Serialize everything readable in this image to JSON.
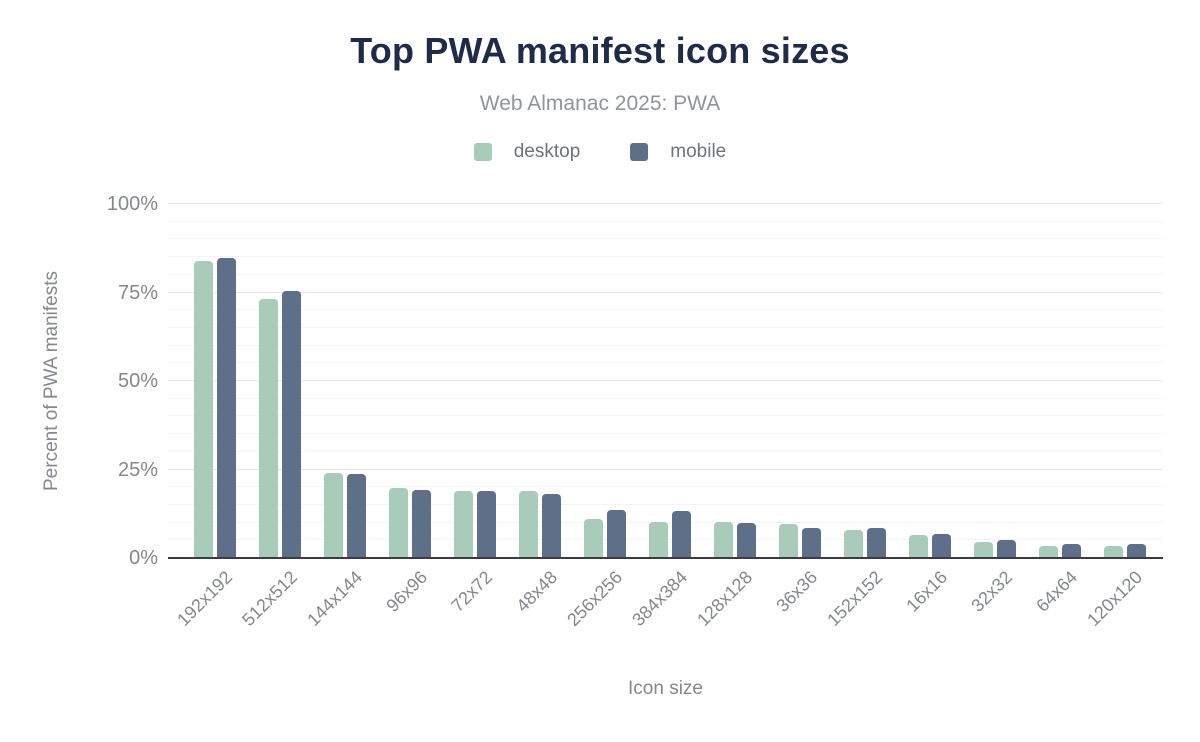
{
  "title": "Top PWA manifest icon sizes",
  "subtitle": "Web Almanac 2025: PWA",
  "legend": {
    "items": [
      {
        "label": "desktop",
        "color": "#a9cbb9"
      },
      {
        "label": "mobile",
        "color": "#5e7089"
      }
    ]
  },
  "colors": {
    "title": "#1e2b49",
    "subtitle_text": "#8f949c",
    "axis_text": "#84888e",
    "axis_line": "#3b3b41",
    "gridline_major": "#e6e7ea",
    "gridline_minor": "#f4f4f6",
    "desktop_series": "#a9cbb9",
    "mobile_series": "#5e7089"
  },
  "chart_data": {
    "type": "bar",
    "title": "Top PWA manifest icon sizes",
    "subtitle": "Web Almanac 2025: PWA",
    "xlabel": "Icon size",
    "ylabel": "Percent of PWA manifests",
    "ylim": [
      0,
      100
    ],
    "yticks": [
      0,
      25,
      50,
      75,
      100
    ],
    "ytick_labels": [
      "0%",
      "25%",
      "50%",
      "75%",
      "100%"
    ],
    "minor_gridline_step": 5,
    "major_gridline_step": 25,
    "grid": true,
    "legend_position": "top",
    "x_tick_rotation": -45,
    "categories": [
      "192x192",
      "512x512",
      "144x144",
      "96x96",
      "72x72",
      "48x48",
      "256x256",
      "384x384",
      "128x128",
      "36x36",
      "152x152",
      "16x16",
      "32x32",
      "64x64",
      "120x120"
    ],
    "series": [
      {
        "name": "desktop",
        "color": "#a9cbb9",
        "values": [
          84.0,
          73.3,
          23.9,
          19.9,
          18.9,
          18.9,
          10.9,
          10.2,
          10.2,
          9.7,
          8.0,
          6.4,
          4.5,
          3.5,
          3.4
        ]
      },
      {
        "name": "mobile",
        "color": "#5e7089",
        "values": [
          84.7,
          75.4,
          23.7,
          19.3,
          18.9,
          18.1,
          13.7,
          13.4,
          10.0,
          8.4,
          8.5,
          6.9,
          5.0,
          4.0,
          4.0
        ]
      }
    ]
  }
}
